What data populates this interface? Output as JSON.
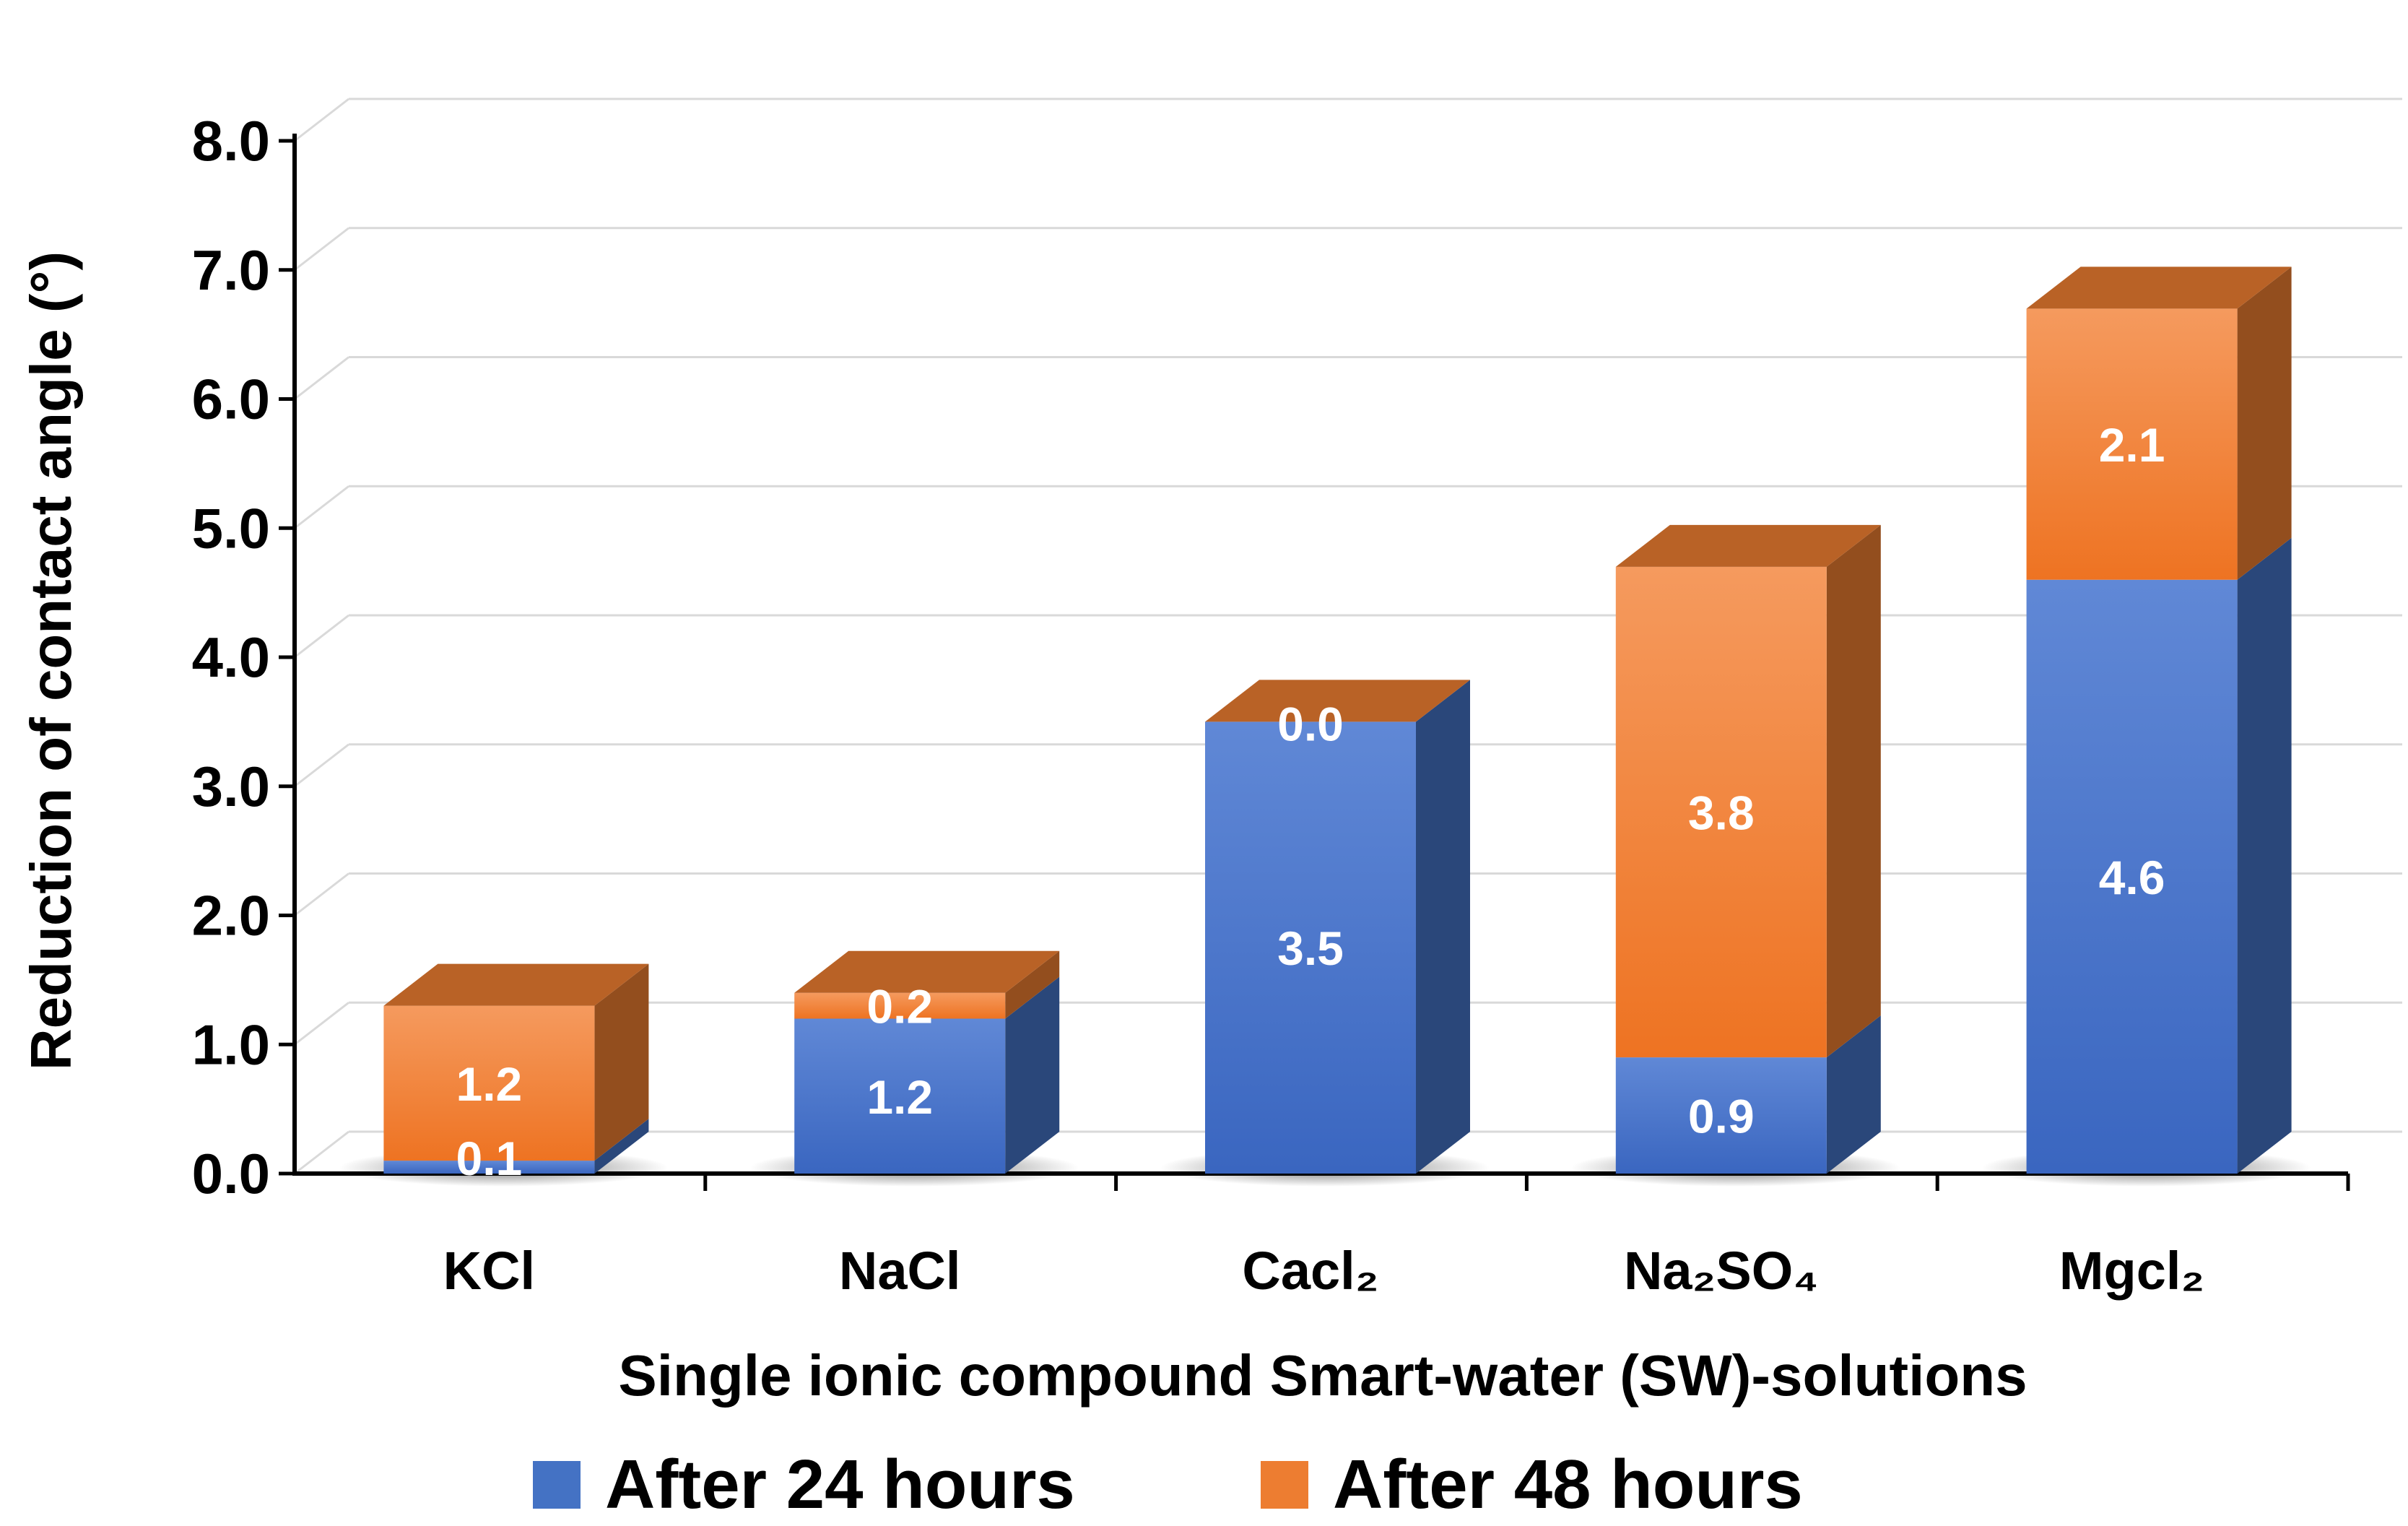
{
  "chart_data": {
    "type": "bar",
    "stacked": true,
    "three_d": true,
    "title": "",
    "xlabel": "Single ionic compound Smart-water (SW)-solutions",
    "ylabel": "Reduction of contact angle (°)",
    "ylim": [
      0,
      8
    ],
    "yticks": [
      "0.0",
      "1.0",
      "2.0",
      "3.0",
      "4.0",
      "5.0",
      "6.0",
      "7.0",
      "8.0"
    ],
    "grid": true,
    "legend_position": "bottom",
    "categories": [
      "KCl",
      "NaCl",
      "Cacl₂",
      "Na₂SO₄",
      "Mgcl₂"
    ],
    "series": [
      {
        "name": "After 24 hours",
        "color": "#4472C4",
        "values": [
          0.1,
          1.2,
          3.5,
          0.9,
          4.6
        ],
        "labels": [
          "0.1",
          "1.2",
          "3.5",
          "0.9",
          "4.6"
        ]
      },
      {
        "name": "After 48 hours",
        "color": "#ED7D31",
        "values": [
          1.2,
          0.2,
          0.0,
          3.8,
          2.1
        ],
        "labels": [
          "1.2",
          "0.2",
          "0.0",
          "3.8",
          "2.1"
        ]
      }
    ]
  }
}
